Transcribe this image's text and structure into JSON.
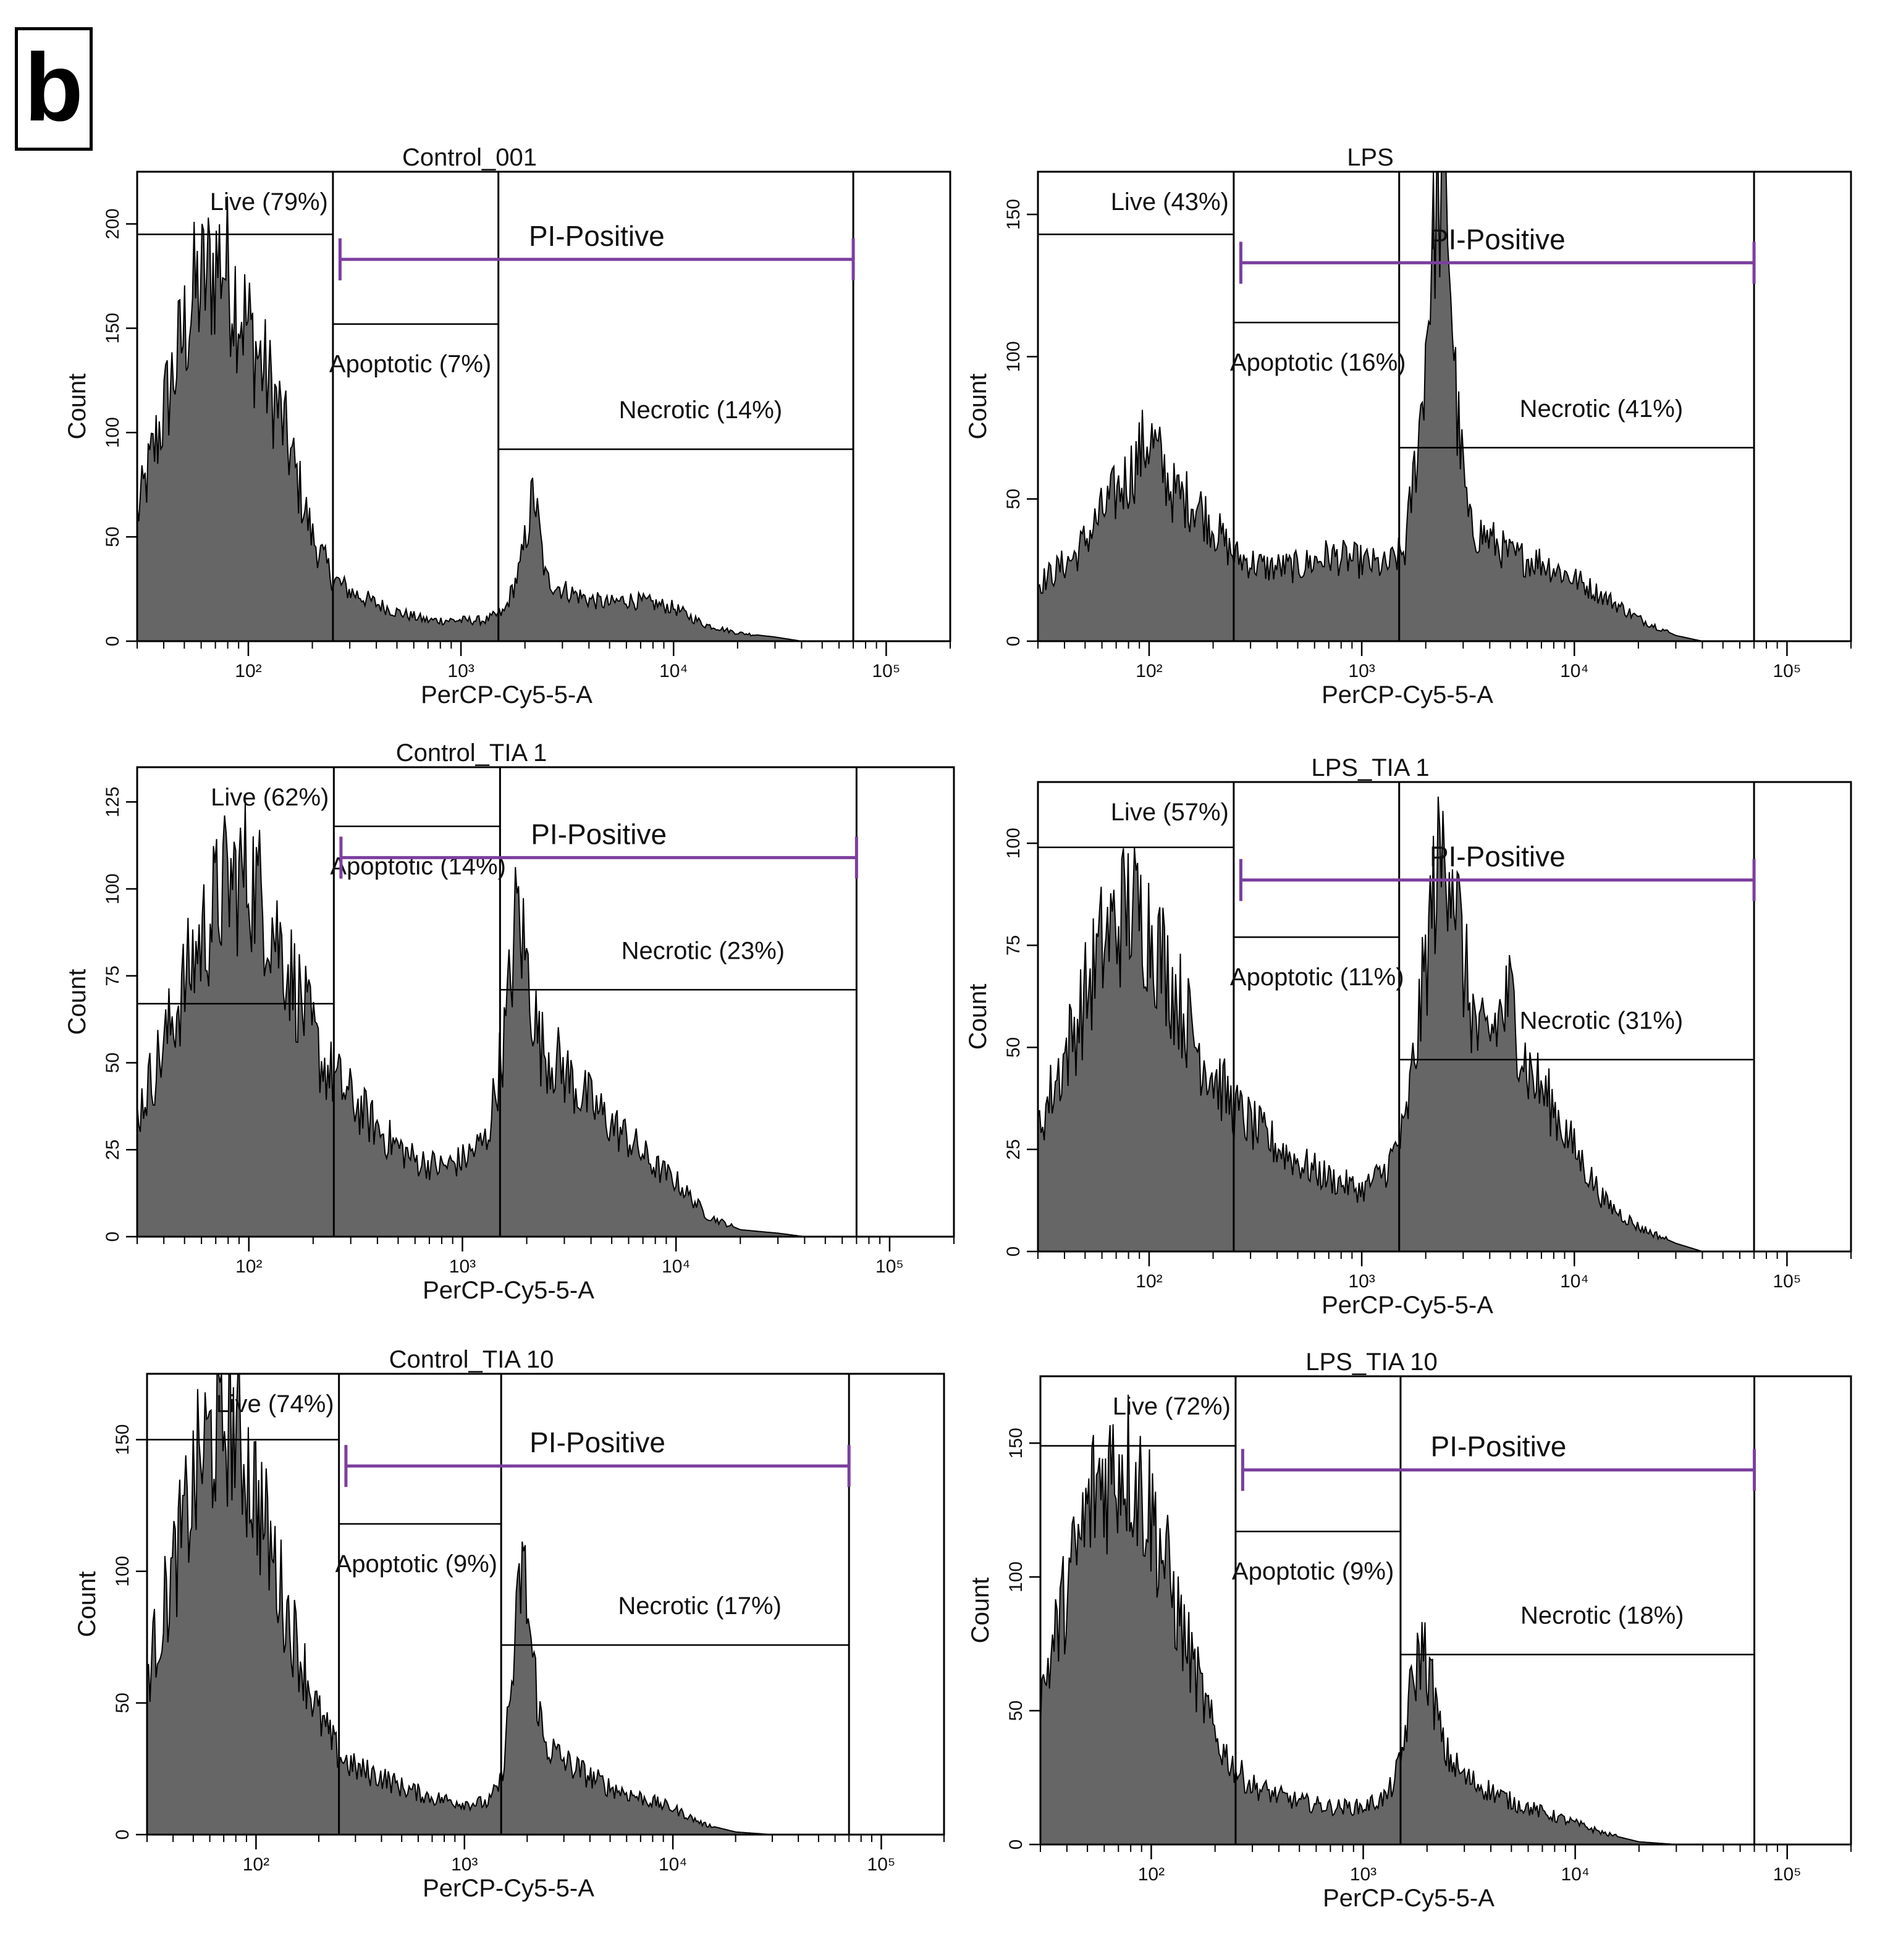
{
  "panel_label": "b",
  "colors": {
    "fill": "#666666",
    "stroke": "#000000",
    "gate": "#000000",
    "pi_bar": "#7b3f9e"
  },
  "chart_data": [
    {
      "type": "histogram",
      "title": "Control_001",
      "xlabel": "PerCP-Cy5-5-A",
      "ylabel": "Count",
      "xscale": "log",
      "xlim": [
        30,
        200000
      ],
      "ylim": [
        0,
        225
      ],
      "yticks": [
        0,
        50,
        100,
        150,
        200
      ],
      "xticks": [
        {
          "value": 100,
          "label": "10²"
        },
        {
          "value": 1000,
          "label": "10³"
        },
        {
          "value": 10000,
          "label": "10⁴"
        },
        {
          "value": 100000,
          "label": "10⁵"
        }
      ],
      "gates": [
        {
          "name": "Live",
          "label": "Live (79%)",
          "range": [
            30,
            250
          ],
          "level": 195
        },
        {
          "name": "Apoptotic",
          "label": "Apoptotic (7%)",
          "range": [
            250,
            1500
          ],
          "level": 152
        },
        {
          "name": "Necrotic",
          "label": "Necrotic (14%)",
          "range": [
            1500,
            70000
          ],
          "level": 92
        }
      ],
      "pi_positive": {
        "label": "PI-Positive",
        "range": [
          270,
          70000
        ],
        "level": 183
      },
      "curve": {
        "x": [
          30,
          40,
          55,
          75,
          100,
          140,
          200,
          250,
          300,
          400,
          500,
          700,
          1000,
          1300,
          1600,
          1900,
          2200,
          2500,
          3000,
          4000,
          5000,
          6000,
          8000,
          10000,
          14000,
          20000,
          30000,
          40000
        ],
        "y": [
          60,
          110,
          165,
          185,
          150,
          110,
          50,
          30,
          24,
          18,
          14,
          10,
          10,
          10,
          14,
          35,
          72,
          30,
          25,
          20,
          18,
          20,
          18,
          16,
          8,
          4,
          2,
          0
        ]
      }
    },
    {
      "type": "histogram",
      "title": "LPS",
      "xlabel": "PerCP-Cy5-5-A",
      "ylabel": "Count",
      "xscale": "log",
      "xlim": [
        30,
        200000
      ],
      "ylim": [
        0,
        165
      ],
      "yticks": [
        0,
        50,
        100,
        150
      ],
      "xticks": [
        {
          "value": 100,
          "label": "10²"
        },
        {
          "value": 1000,
          "label": "10³"
        },
        {
          "value": 10000,
          "label": "10⁴"
        },
        {
          "value": 100000,
          "label": "10⁵"
        }
      ],
      "gates": [
        {
          "name": "Live",
          "label": "Live (43%)",
          "range": [
            30,
            250
          ],
          "level": 143
        },
        {
          "name": "Apoptotic",
          "label": "Apoptotic (16%)",
          "range": [
            250,
            1500
          ],
          "level": 112
        },
        {
          "name": "Necrotic",
          "label": "Necrotic (41%)",
          "range": [
            1500,
            70000
          ],
          "level": 68
        }
      ],
      "pi_positive": {
        "label": "PI-Positive",
        "range": [
          270,
          70000
        ],
        "level": 133
      },
      "curve": {
        "x": [
          30,
          45,
          60,
          80,
          100,
          130,
          170,
          250,
          350,
          500,
          700,
          1000,
          1300,
          1600,
          1900,
          2200,
          2500,
          2800,
          3200,
          4000,
          5000,
          7000,
          10000,
          15000,
          20000,
          30000,
          40000
        ],
        "y": [
          20,
          30,
          45,
          58,
          72,
          52,
          48,
          30,
          26,
          26,
          30,
          28,
          26,
          32,
          80,
          150,
          162,
          80,
          40,
          36,
          30,
          28,
          22,
          14,
          8,
          2,
          0
        ]
      }
    },
    {
      "type": "histogram",
      "title": "Control_TIA 1",
      "xlabel": "PerCP-Cy5-5-A",
      "ylabel": "Count",
      "xscale": "log",
      "xlim": [
        30,
        200000
      ],
      "ylim": [
        0,
        135
      ],
      "yticks": [
        0,
        25,
        50,
        75,
        100,
        125
      ],
      "xticks": [
        {
          "value": 100,
          "label": "10²"
        },
        {
          "value": 1000,
          "label": "10³"
        },
        {
          "value": 10000,
          "label": "10⁴"
        },
        {
          "value": 100000,
          "label": "10⁵"
        }
      ],
      "gates": [
        {
          "name": "Live",
          "label": "Live (62%)",
          "range": [
            30,
            250
          ],
          "level": 67
        },
        {
          "name": "Apoptotic",
          "label": "Apoptotic (14%)",
          "range": [
            250,
            1500
          ],
          "level": 118
        },
        {
          "name": "Necrotic",
          "label": "Necrotic (23%)",
          "range": [
            1500,
            70000
          ],
          "level": 71
        }
      ],
      "pi_positive": {
        "label": "PI-Positive",
        "range": [
          270,
          70000
        ],
        "level": 109
      },
      "curve": {
        "x": [
          30,
          40,
          55,
          75,
          100,
          130,
          170,
          220,
          280,
          350,
          450,
          600,
          800,
          1000,
          1300,
          1600,
          1800,
          2000,
          2300,
          2800,
          3500,
          4500,
          6000,
          8000,
          10000,
          14000,
          20000,
          30000,
          40000
        ],
        "y": [
          35,
          55,
          80,
          100,
          105,
          90,
          70,
          50,
          42,
          35,
          28,
          22,
          20,
          22,
          28,
          60,
          95,
          78,
          55,
          50,
          42,
          35,
          28,
          20,
          16,
          6,
          2,
          1,
          0
        ]
      }
    },
    {
      "type": "histogram",
      "title": "LPS_TIA 1",
      "xlabel": "PerCP-Cy5-5-A",
      "ylabel": "Count",
      "xscale": "log",
      "xlim": [
        30,
        200000
      ],
      "ylim": [
        0,
        115
      ],
      "yticks": [
        0,
        25,
        50,
        75,
        100
      ],
      "xticks": [
        {
          "value": 100,
          "label": "10²"
        },
        {
          "value": 1000,
          "label": "10³"
        },
        {
          "value": 10000,
          "label": "10⁴"
        },
        {
          "value": 100000,
          "label": "10⁵"
        }
      ],
      "gates": [
        {
          "name": "Live",
          "label": "Live (57%)",
          "range": [
            30,
            250
          ],
          "level": 99
        },
        {
          "name": "Apoptotic",
          "label": "Apoptotic (11%)",
          "range": [
            250,
            1500
          ],
          "level": 77
        },
        {
          "name": "Necrotic",
          "label": "Necrotic (31%)",
          "range": [
            1500,
            70000
          ],
          "level": 47
        }
      ],
      "pi_positive": {
        "label": "PI-Positive",
        "range": [
          270,
          70000
        ],
        "level": 91
      },
      "curve": {
        "x": [
          30,
          45,
          60,
          80,
          100,
          130,
          170,
          250,
          350,
          500,
          700,
          1000,
          1300,
          1600,
          1900,
          2200,
          2600,
          3000,
          3600,
          4200,
          5000,
          6000,
          8000,
          10000,
          14000,
          20000,
          30000,
          40000
        ],
        "y": [
          30,
          55,
          75,
          85,
          80,
          65,
          50,
          35,
          28,
          22,
          18,
          15,
          20,
          30,
          60,
          90,
          102,
          70,
          50,
          55,
          62,
          45,
          35,
          25,
          12,
          6,
          2,
          0
        ]
      }
    },
    {
      "type": "histogram",
      "title": "Control_TIA 10",
      "xlabel": "PerCP-Cy5-5-A",
      "ylabel": "Count",
      "xscale": "log",
      "xlim": [
        30,
        200000
      ],
      "ylim": [
        0,
        175
      ],
      "yticks": [
        0,
        50,
        100,
        150
      ],
      "xticks": [
        {
          "value": 100,
          "label": "10²"
        },
        {
          "value": 1000,
          "label": "10³"
        },
        {
          "value": 10000,
          "label": "10⁴"
        },
        {
          "value": 100000,
          "label": "10⁵"
        }
      ],
      "gates": [
        {
          "name": "Live",
          "label": "Live (74%)",
          "range": [
            30,
            250
          ],
          "level": 150
        },
        {
          "name": "Apoptotic",
          "label": "Apoptotic (9%)",
          "range": [
            250,
            1500
          ],
          "level": 118
        },
        {
          "name": "Necrotic",
          "label": "Necrotic (17%)",
          "range": [
            1500,
            70000
          ],
          "level": 72
        }
      ],
      "pi_positive": {
        "label": "PI-Positive",
        "range": [
          270,
          70000
        ],
        "level": 140
      },
      "curve": {
        "x": [
          30,
          40,
          55,
          75,
          100,
          140,
          200,
          250,
          300,
          400,
          500,
          700,
          1000,
          1300,
          1500,
          1700,
          1900,
          2100,
          2400,
          3000,
          4000,
          5000,
          7000,
          10000,
          14000,
          20000,
          30000
        ],
        "y": [
          60,
          100,
          145,
          160,
          130,
          85,
          45,
          30,
          25,
          22,
          18,
          14,
          12,
          12,
          20,
          60,
          105,
          70,
          35,
          28,
          22,
          18,
          14,
          10,
          4,
          1,
          0
        ]
      }
    },
    {
      "type": "histogram",
      "title": "LPS_TIA 10",
      "xlabel": "PerCP-Cy5-5-A",
      "ylabel": "Count",
      "xscale": "log",
      "xlim": [
        30,
        200000
      ],
      "ylim": [
        0,
        175
      ],
      "yticks": [
        0,
        50,
        100,
        150
      ],
      "xticks": [
        {
          "value": 100,
          "label": "10²"
        },
        {
          "value": 1000,
          "label": "10³"
        },
        {
          "value": 10000,
          "label": "10⁴"
        },
        {
          "value": 100000,
          "label": "10⁵"
        }
      ],
      "gates": [
        {
          "name": "Live",
          "label": "Live (72%)",
          "range": [
            30,
            250
          ],
          "level": 149
        },
        {
          "name": "Apoptotic",
          "label": "Apoptotic (9%)",
          "range": [
            250,
            1500
          ],
          "level": 117
        },
        {
          "name": "Necrotic",
          "label": "Necrotic (18%)",
          "range": [
            1500,
            70000
          ],
          "level": 71
        }
      ],
      "pi_positive": {
        "label": "PI-Positive",
        "range": [
          270,
          70000
        ],
        "level": 140
      },
      "curve": {
        "x": [
          30,
          40,
          55,
          75,
          100,
          140,
          200,
          250,
          300,
          400,
          500,
          700,
          1000,
          1300,
          1500,
          1700,
          1900,
          2100,
          2400,
          3000,
          4000,
          5000,
          7000,
          10000,
          14000,
          20000,
          30000
        ],
        "y": [
          55,
          95,
          135,
          145,
          125,
          80,
          40,
          28,
          22,
          18,
          16,
          14,
          14,
          18,
          30,
          60,
          75,
          60,
          35,
          25,
          20,
          16,
          12,
          8,
          4,
          1,
          0
        ]
      }
    }
  ]
}
